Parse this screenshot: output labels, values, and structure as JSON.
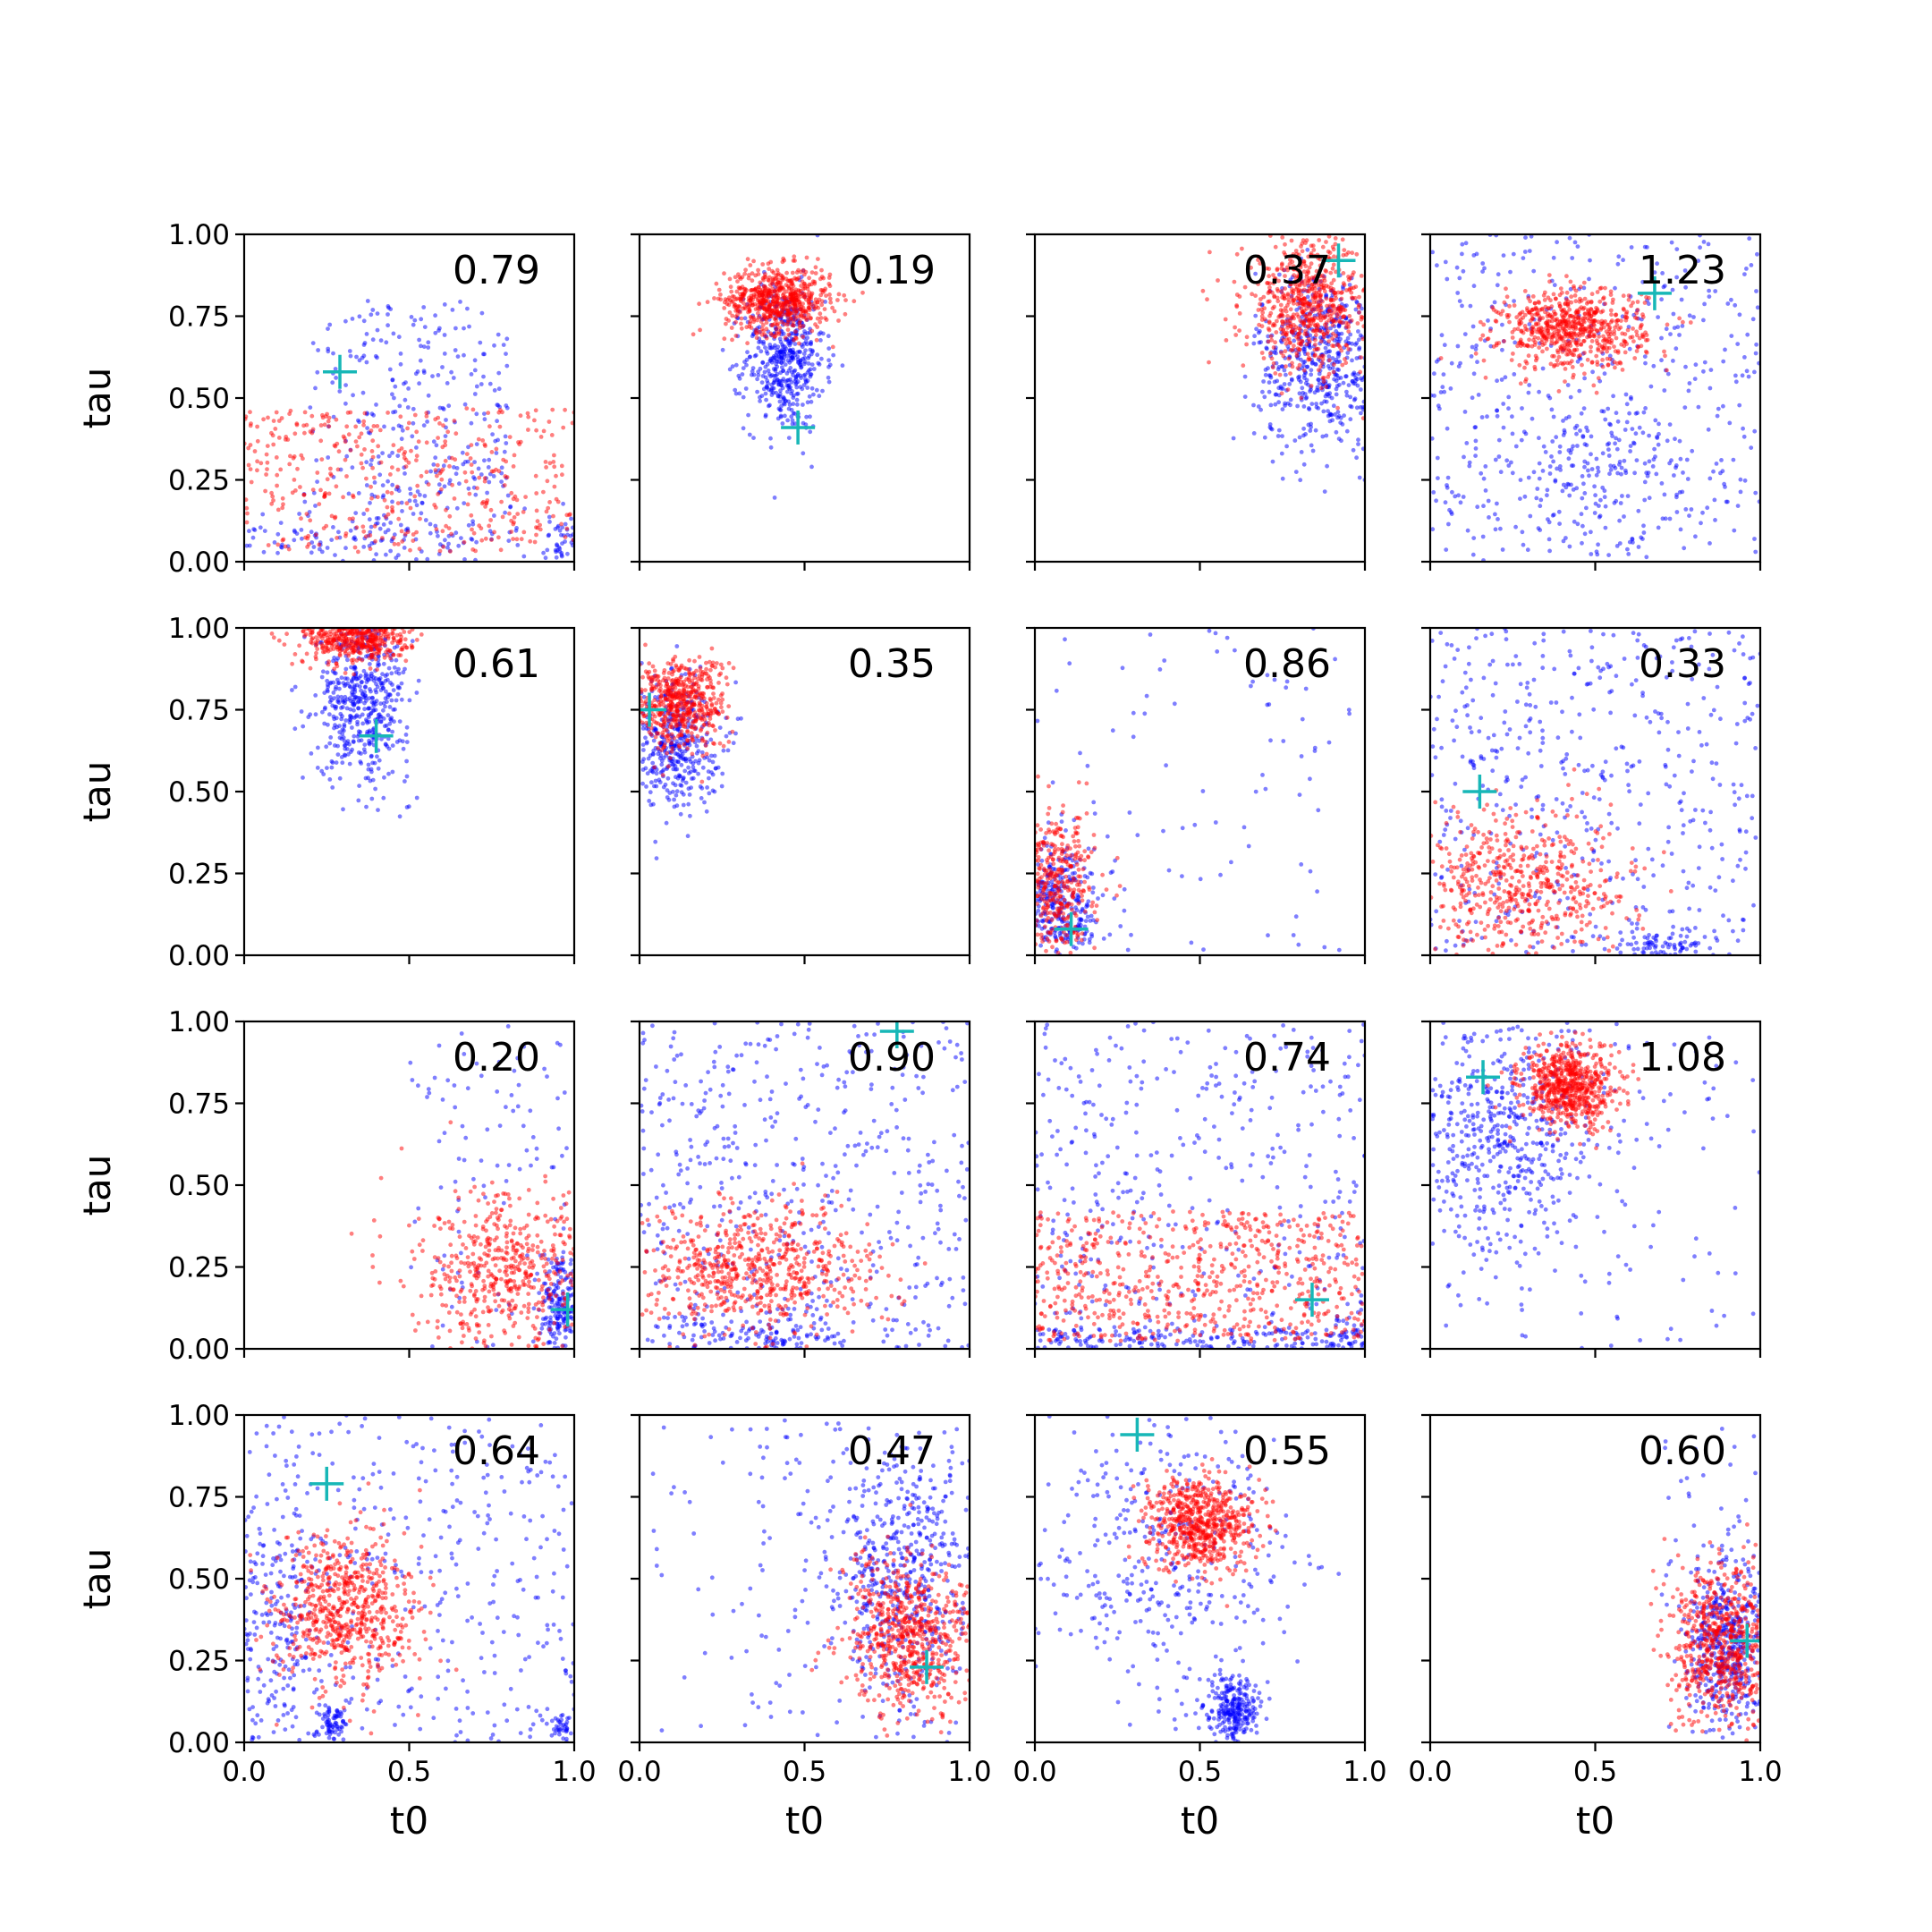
{
  "figure": {
    "rows": 4,
    "cols": 4,
    "colors": {
      "series_a": "#0000ff",
      "series_b": "#ff0000",
      "marker": "#17b7b7",
      "axis": "#000000"
    }
  },
  "chart_data": {
    "type": "scatter",
    "xlabel": "t0",
    "ylabel": "tau",
    "xlim": [
      0,
      1
    ],
    "ylim": [
      0,
      1
    ],
    "xticks": [
      0.0,
      0.5,
      1.0
    ],
    "xtick_labels": [
      "0.0",
      "0.5",
      "1.0"
    ],
    "yticks": [
      0.0,
      0.25,
      0.5,
      0.75,
      1.0
    ],
    "ytick_labels": [
      "0.00",
      "0.25",
      "0.50",
      "0.75",
      "1.00"
    ],
    "grid": false,
    "sharex": true,
    "sharey": true,
    "panels": [
      {
        "label": "0.79",
        "marker": [
          0.29,
          0.58
        ],
        "blue": [
          {
            "cx": 0.5,
            "cy": 0.5,
            "sx": 0.3,
            "sy": 0.3,
            "n": 260,
            "kind": "uniform"
          },
          {
            "cx": 0.4,
            "cy": 0.08,
            "sx": 0.25,
            "sy": 0.07,
            "n": 200
          },
          {
            "cx": 0.97,
            "cy": 0.05,
            "sx": 0.03,
            "sy": 0.05,
            "n": 60
          }
        ],
        "red": [
          {
            "cx": 0.5,
            "cy": 0.25,
            "sx": 0.5,
            "sy": 0.22,
            "n": 420,
            "kind": "uniform"
          }
        ]
      },
      {
        "label": "0.19",
        "marker": [
          0.48,
          0.41
        ],
        "blue": [
          {
            "cx": 0.44,
            "cy": 0.62,
            "sx": 0.06,
            "sy": 0.11,
            "n": 500
          }
        ],
        "red": [
          {
            "cx": 0.42,
            "cy": 0.8,
            "sx": 0.08,
            "sy": 0.05,
            "n": 650
          }
        ]
      },
      {
        "label": "0.37",
        "marker": [
          0.92,
          0.92
        ],
        "blue": [
          {
            "cx": 0.87,
            "cy": 0.62,
            "sx": 0.1,
            "sy": 0.14,
            "n": 550
          }
        ],
        "red": [
          {
            "cx": 0.83,
            "cy": 0.78,
            "sx": 0.1,
            "sy": 0.1,
            "n": 650
          }
        ]
      },
      {
        "label": "1.23",
        "marker": [
          0.68,
          0.82
        ],
        "blue": [
          {
            "cx": 0.5,
            "cy": 0.5,
            "sx": 0.5,
            "sy": 0.5,
            "n": 420,
            "kind": "uniform"
          },
          {
            "cx": 0.5,
            "cy": 0.3,
            "sx": 0.15,
            "sy": 0.12,
            "n": 180
          }
        ],
        "red": [
          {
            "cx": 0.43,
            "cy": 0.71,
            "sx": 0.11,
            "sy": 0.06,
            "n": 650
          }
        ]
      },
      {
        "label": "0.61",
        "marker": [
          0.4,
          0.67
        ],
        "blue": [
          {
            "cx": 0.36,
            "cy": 0.78,
            "sx": 0.07,
            "sy": 0.12,
            "n": 500
          }
        ],
        "red": [
          {
            "cx": 0.34,
            "cy": 0.97,
            "sx": 0.08,
            "sy": 0.04,
            "n": 500
          }
        ]
      },
      {
        "label": "0.35",
        "marker": [
          0.03,
          0.75
        ],
        "blue": [
          {
            "cx": 0.1,
            "cy": 0.65,
            "sx": 0.07,
            "sy": 0.1,
            "n": 400
          }
        ],
        "red": [
          {
            "cx": 0.12,
            "cy": 0.77,
            "sx": 0.07,
            "sy": 0.07,
            "n": 550
          }
        ]
      },
      {
        "label": "0.86",
        "marker": [
          0.11,
          0.08
        ],
        "blue": [
          {
            "cx": 0.08,
            "cy": 0.15,
            "sx": 0.06,
            "sy": 0.1,
            "n": 320
          },
          {
            "cx": 0.5,
            "cy": 0.5,
            "sx": 0.5,
            "sy": 0.5,
            "n": 90,
            "kind": "uniform"
          }
        ],
        "red": [
          {
            "cx": 0.06,
            "cy": 0.22,
            "sx": 0.06,
            "sy": 0.11,
            "n": 400
          }
        ]
      },
      {
        "label": "0.33",
        "marker": [
          0.15,
          0.5
        ],
        "blue": [
          {
            "cx": 0.5,
            "cy": 0.5,
            "sx": 0.5,
            "sy": 0.5,
            "n": 480,
            "kind": "uniform"
          },
          {
            "cx": 0.72,
            "cy": 0.03,
            "sx": 0.08,
            "sy": 0.03,
            "n": 90
          }
        ],
        "red": [
          {
            "cx": 0.28,
            "cy": 0.22,
            "sx": 0.17,
            "sy": 0.11,
            "n": 550
          }
        ]
      },
      {
        "label": "0.20",
        "marker": [
          0.98,
          0.12
        ],
        "blue": [
          {
            "cx": 0.96,
            "cy": 0.12,
            "sx": 0.03,
            "sy": 0.08,
            "n": 200
          },
          {
            "cx": 0.75,
            "cy": 0.5,
            "sx": 0.25,
            "sy": 0.5,
            "n": 110,
            "kind": "uniform"
          }
        ],
        "red": [
          {
            "cx": 0.8,
            "cy": 0.23,
            "sx": 0.15,
            "sy": 0.12,
            "n": 550
          }
        ]
      },
      {
        "label": "0.90",
        "marker": [
          0.78,
          0.97
        ],
        "blue": [
          {
            "cx": 0.5,
            "cy": 0.5,
            "sx": 0.5,
            "sy": 0.5,
            "n": 500,
            "kind": "uniform"
          },
          {
            "cx": 0.35,
            "cy": 0.04,
            "sx": 0.15,
            "sy": 0.04,
            "n": 140
          }
        ],
        "red": [
          {
            "cx": 0.35,
            "cy": 0.24,
            "sx": 0.18,
            "sy": 0.1,
            "n": 650
          }
        ]
      },
      {
        "label": "0.74",
        "marker": [
          0.84,
          0.15
        ],
        "blue": [
          {
            "cx": 0.5,
            "cy": 0.5,
            "sx": 0.5,
            "sy": 0.5,
            "n": 400,
            "kind": "uniform"
          },
          {
            "cx": 0.5,
            "cy": 0.03,
            "sx": 0.5,
            "sy": 0.03,
            "n": 180,
            "kind": "uniform"
          }
        ],
        "red": [
          {
            "cx": 0.5,
            "cy": 0.22,
            "sx": 0.5,
            "sy": 0.2,
            "n": 650,
            "kind": "uniform"
          }
        ]
      },
      {
        "label": "1.08",
        "marker": [
          0.16,
          0.83
        ],
        "blue": [
          {
            "cx": 0.22,
            "cy": 0.65,
            "sx": 0.15,
            "sy": 0.18,
            "n": 520
          },
          {
            "cx": 0.5,
            "cy": 0.5,
            "sx": 0.5,
            "sy": 0.5,
            "n": 120,
            "kind": "uniform"
          }
        ],
        "red": [
          {
            "cx": 0.42,
            "cy": 0.8,
            "sx": 0.07,
            "sy": 0.06,
            "n": 650
          }
        ]
      },
      {
        "label": "0.64",
        "marker": [
          0.25,
          0.79
        ],
        "blue": [
          {
            "cx": 0.5,
            "cy": 0.5,
            "sx": 0.5,
            "sy": 0.5,
            "n": 380,
            "kind": "uniform"
          },
          {
            "cx": 0.1,
            "cy": 0.38,
            "sx": 0.07,
            "sy": 0.18,
            "n": 180
          },
          {
            "cx": 0.27,
            "cy": 0.06,
            "sx": 0.02,
            "sy": 0.03,
            "n": 70
          },
          {
            "cx": 0.97,
            "cy": 0.04,
            "sx": 0.02,
            "sy": 0.03,
            "n": 40
          }
        ],
        "red": [
          {
            "cx": 0.3,
            "cy": 0.4,
            "sx": 0.11,
            "sy": 0.12,
            "n": 650
          }
        ]
      },
      {
        "label": "0.47",
        "marker": [
          0.87,
          0.23
        ],
        "blue": [
          {
            "cx": 0.8,
            "cy": 0.5,
            "sx": 0.12,
            "sy": 0.22,
            "n": 550
          },
          {
            "cx": 0.5,
            "cy": 0.5,
            "sx": 0.5,
            "sy": 0.5,
            "n": 120,
            "kind": "uniform"
          }
        ],
        "red": [
          {
            "cx": 0.82,
            "cy": 0.32,
            "sx": 0.1,
            "sy": 0.12,
            "n": 650
          }
        ]
      },
      {
        "label": "0.55",
        "marker": [
          0.31,
          0.94
        ],
        "blue": [
          {
            "cx": 0.4,
            "cy": 0.58,
            "sx": 0.2,
            "sy": 0.22,
            "n": 380
          },
          {
            "cx": 0.6,
            "cy": 0.1,
            "sx": 0.04,
            "sy": 0.05,
            "n": 260
          }
        ],
        "red": [
          {
            "cx": 0.5,
            "cy": 0.67,
            "sx": 0.08,
            "sy": 0.07,
            "n": 650
          }
        ]
      },
      {
        "label": "0.60",
        "marker": [
          0.96,
          0.31
        ],
        "blue": [
          {
            "cx": 0.9,
            "cy": 0.3,
            "sx": 0.06,
            "sy": 0.13,
            "n": 450
          },
          {
            "cx": 0.85,
            "cy": 0.5,
            "sx": 0.15,
            "sy": 0.5,
            "n": 60,
            "kind": "uniform"
          }
        ],
        "red": [
          {
            "cx": 0.88,
            "cy": 0.3,
            "sx": 0.08,
            "sy": 0.12,
            "n": 650
          }
        ]
      }
    ]
  }
}
